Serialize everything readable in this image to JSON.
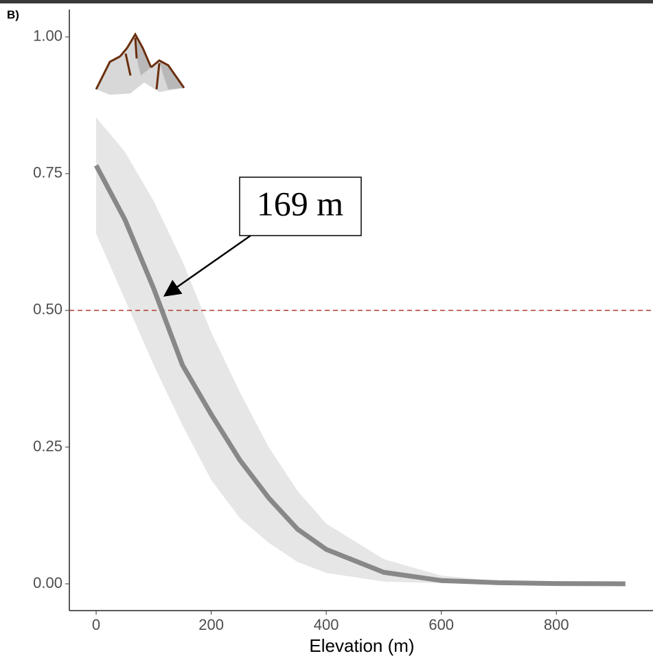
{
  "chart_data": {
    "type": "line",
    "panel_label": "B)",
    "xlabel": "Elevation (m)",
    "x": [
      0,
      50,
      100,
      150,
      200,
      250,
      300,
      350,
      400,
      500,
      600,
      700,
      800,
      920
    ],
    "series": [
      {
        "color": "#888888",
        "band_color": "#e6e6e6",
        "values": [
          0.765,
          0.666,
          0.54,
          0.4,
          0.31,
          0.226,
          0.157,
          0.1,
          0.063,
          0.021,
          0.006,
          0.002,
          0.0005,
          0
        ],
        "upper": [
          0.853,
          0.79,
          0.7,
          0.59,
          0.46,
          0.35,
          0.25,
          0.17,
          0.11,
          0.045,
          0.015,
          0.005,
          0.001,
          0
        ],
        "lower": [
          0.64,
          0.52,
          0.4,
          0.29,
          0.19,
          0.12,
          0.075,
          0.04,
          0.02,
          0.004,
          0.001,
          0,
          0,
          0
        ]
      }
    ],
    "hline": {
      "value": 0.5,
      "color": "#b03a2e"
    },
    "annotation": "169 m",
    "xlim": [
      -46.6,
      968
    ],
    "ylim": [
      -0.049,
      1.05
    ],
    "xticks": [
      0,
      200,
      400,
      600,
      800
    ],
    "yticks": [
      {
        "value": 0,
        "label": "0.00"
      },
      {
        "value": 0.25,
        "label": "0.25"
      },
      {
        "value": 0.5,
        "label": "0.50"
      },
      {
        "value": 0.75,
        "label": "0.75"
      },
      {
        "value": 1,
        "label": "1.00"
      }
    ]
  }
}
